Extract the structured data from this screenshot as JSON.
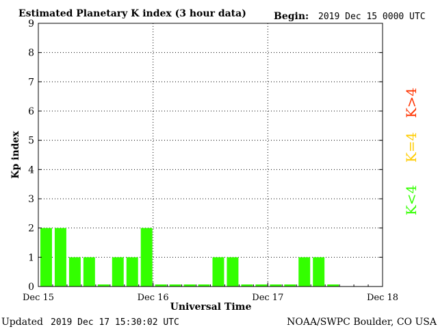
{
  "header": {
    "title": "Estimated Planetary K index (3 hour data)",
    "begin_label": "Begin:",
    "begin_value": "2019 Dec 15 0000 UTC"
  },
  "footer": {
    "updated_label": "Updated",
    "updated_value": "2019 Dec 17 15:30:02 UTC",
    "source": "NOAA/SWPC Boulder, CO USA"
  },
  "legend": {
    "above": "K>4",
    "equal": "K=4",
    "below": "K<4",
    "colors": {
      "above": "#ff3300",
      "equal": "#ffcc00",
      "below": "#33ff00"
    }
  },
  "chart_data": {
    "type": "bar",
    "title": "Estimated Planetary K index (3 hour data)",
    "xlabel": "Universal Time",
    "ylabel": "Kp index",
    "ylim": [
      0,
      9
    ],
    "yticks": [
      0,
      1,
      2,
      3,
      4,
      5,
      6,
      7,
      8,
      9
    ],
    "xlim": [
      "2019-12-15 00:00",
      "2019-12-18 00:00"
    ],
    "xtick_labels": [
      "Dec 15",
      "Dec 16",
      "Dec 17",
      "Dec 18"
    ],
    "interval_hours": 3,
    "bar_color": "#33ff00",
    "grid": true,
    "categories": [
      "2019-12-15 00:00",
      "2019-12-15 03:00",
      "2019-12-15 06:00",
      "2019-12-15 09:00",
      "2019-12-15 12:00",
      "2019-12-15 15:00",
      "2019-12-15 18:00",
      "2019-12-15 21:00",
      "2019-12-16 00:00",
      "2019-12-16 03:00",
      "2019-12-16 06:00",
      "2019-12-16 09:00",
      "2019-12-16 12:00",
      "2019-12-16 15:00",
      "2019-12-16 18:00",
      "2019-12-16 21:00",
      "2019-12-17 00:00",
      "2019-12-17 03:00",
      "2019-12-17 06:00",
      "2019-12-17 09:00",
      "2019-12-17 12:00"
    ],
    "values": [
      2,
      2,
      1,
      1,
      0,
      1,
      1,
      2,
      0,
      0,
      0,
      0,
      1,
      1,
      0,
      0,
      0,
      0,
      1,
      1,
      0
    ]
  }
}
